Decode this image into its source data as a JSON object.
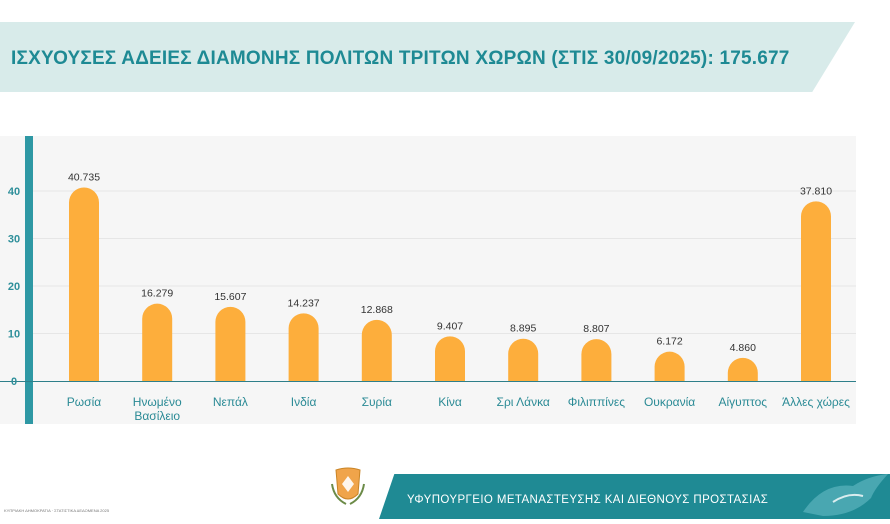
{
  "title": "ΙΣΧΥΟΥΣΕΣ ΑΔΕΙΕΣ ΔΙΑΜΟΝΗΣ ΠΟΛΙΤΩΝ ΤΡΙΤΩΝ ΧΩΡΩΝ (ΣΤΙΣ 30/09/2025): 175.677",
  "footer": {
    "ministry": "ΥΦΥΠΟΥΡΓΕΙΟ ΜΕΤΑΝΑΣΤΕΥΣΗΣ ΚΑΙ ΔΙΕΘΝΟΥΣ ΠΡΟΣΤΑΣΙΑΣ",
    "left_small": "ΚΥΠΡΙΑΚΗ ΔΗΜΟΚΡΑΤΙΑ · ΣΤΑΤΙΣΤΙΚΑ ΔΕΔΟΜΕΝΑ 2025"
  },
  "colors": {
    "bar": "#fdae3c",
    "axis": "#2e98a4",
    "title": "#1e8a94",
    "label": "#2a8a95"
  },
  "chart_data": {
    "type": "bar",
    "title": "ΙΣΧΥΟΥΣΕΣ ΑΔΕΙΕΣ ΔΙΑΜΟΝΗΣ ΠΟΛΙΤΩΝ ΤΡΙΤΩΝ ΧΩΡΩΝ (ΣΤΙΣ 30/09/2025): 175.677",
    "xlabel": "",
    "ylabel": "",
    "categories": [
      [
        "Ρωσία"
      ],
      [
        "Ηνωμένο",
        "Βασίλειο"
      ],
      [
        "Νεπάλ"
      ],
      [
        "Ινδία"
      ],
      [
        "Συρία"
      ],
      [
        "Κίνα"
      ],
      [
        "Σρι Λάνκα"
      ],
      [
        "Φιλιππίνες"
      ],
      [
        "Ουκρανία"
      ],
      [
        "Αίγυπτος"
      ],
      [
        "Άλλες χώρες"
      ]
    ],
    "values": [
      40.735,
      16.279,
      15.607,
      14.237,
      12.868,
      9.407,
      8.895,
      8.807,
      6.172,
      4.86,
      37.81
    ],
    "value_labels": [
      "40.735",
      "16.279",
      "15.607",
      "14.237",
      "12.868",
      "9.407",
      "8.895",
      "8.807",
      "6.172",
      "4.860",
      "37.810"
    ],
    "yticks": [
      "0",
      "10",
      "20",
      "30",
      "40"
    ],
    "ylim": [
      0,
      50
    ],
    "grid": true,
    "legend": "none"
  }
}
